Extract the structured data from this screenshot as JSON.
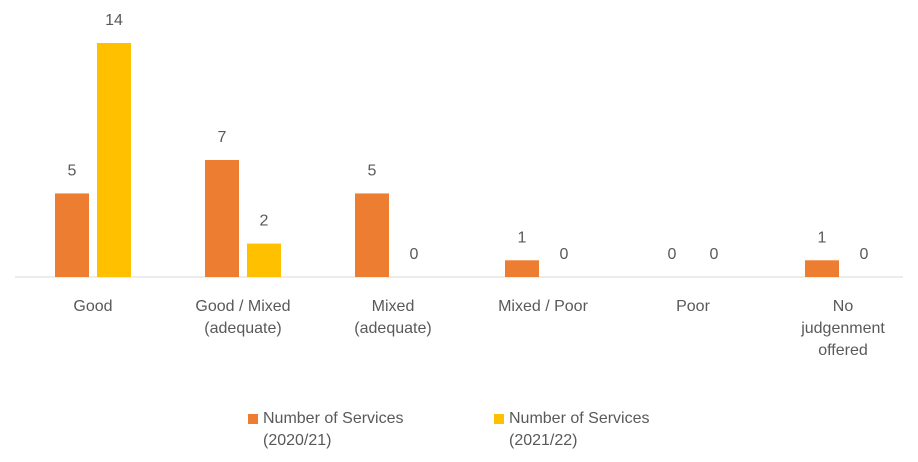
{
  "chart_data": {
    "type": "bar",
    "categories": [
      "Good",
      "Good / Mixed (adequate)",
      "Mixed (adequate)",
      "Mixed / Poor",
      "Poor",
      "No judgenment offered"
    ],
    "series": [
      {
        "name": "Number of Services (2020/21)",
        "color": "#ed7d31",
        "values": [
          5,
          7,
          5,
          1,
          0,
          1
        ]
      },
      {
        "name": "Number of Services (2021/22)",
        "color": "#ffc000",
        "values": [
          14,
          2,
          0,
          0,
          0,
          0
        ]
      }
    ]
  }
}
